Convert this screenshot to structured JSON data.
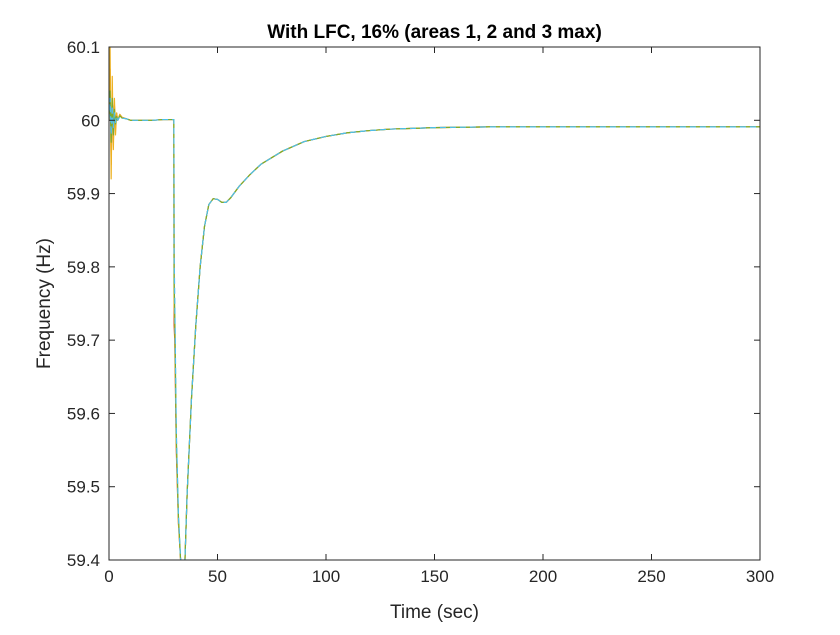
{
  "chart_data": {
    "type": "line",
    "title": "With LFC, 16% (areas 1, 2 and 3 max)",
    "xlabel": "Time (sec)",
    "ylabel": "Frequency (Hz)",
    "xlim": [
      0,
      300
    ],
    "ylim": [
      59.4,
      60.1
    ],
    "x_ticks": [
      0,
      50,
      100,
      150,
      200,
      250,
      300
    ],
    "y_ticks": [
      59.4,
      59.5,
      59.6,
      59.7,
      59.8,
      59.9,
      60,
      60.1
    ],
    "x_tick_labels": [
      "0",
      "50",
      "100",
      "150",
      "200",
      "250",
      "300"
    ],
    "y_tick_labels": [
      "59.4",
      "59.5",
      "59.6",
      "59.7",
      "59.8",
      "59.9",
      "60",
      "60.1"
    ],
    "grid": false,
    "box": true,
    "series": [
      {
        "color": "#d95319",
        "x": [
          0,
          0.5,
          1,
          1.5,
          2,
          2.5,
          3,
          3.5,
          4,
          5,
          6,
          8,
          10,
          15,
          20,
          25,
          29.9,
          30,
          30.3,
          31,
          32,
          33,
          34,
          35,
          36,
          38,
          40,
          42,
          44,
          46,
          48,
          50,
          52,
          54,
          56,
          58,
          60,
          65,
          70,
          80,
          90,
          100,
          110,
          120,
          130,
          140,
          150,
          175,
          200,
          250,
          300
        ],
        "y": [
          60.0,
          60.07,
          59.94,
          60.04,
          59.97,
          60.02,
          59.99,
          60.01,
          60.0,
          60.008,
          60.004,
          60.002,
          60.0,
          60.0,
          60.0,
          60.001,
          60.001,
          59.72,
          59.7,
          59.55,
          59.45,
          59.4,
          59.385,
          59.4,
          59.49,
          59.62,
          59.72,
          59.8,
          59.855,
          59.885,
          59.893,
          59.892,
          59.888,
          59.888,
          59.894,
          59.902,
          59.91,
          59.926,
          59.94,
          59.958,
          59.971,
          59.978,
          59.983,
          59.986,
          59.988,
          59.989,
          59.99,
          59.991,
          59.991,
          59.991,
          59.991
        ]
      },
      {
        "color": "#edb120",
        "x": [
          0,
          0.5,
          1,
          1.5,
          2,
          2.5,
          3,
          3.5,
          4,
          5,
          6,
          8,
          10,
          15,
          20,
          25,
          29.9,
          30,
          30.3,
          31,
          32,
          33,
          34,
          35,
          36,
          38,
          40,
          42,
          44,
          46,
          48,
          50,
          52,
          54,
          56,
          58,
          60,
          65,
          70,
          80,
          90,
          100,
          110,
          120,
          130,
          140,
          150,
          175,
          200,
          250,
          300
        ],
        "y": [
          60.0,
          60.1,
          59.92,
          60.06,
          59.96,
          60.03,
          59.98,
          60.01,
          60.0,
          60.008,
          60.004,
          60.002,
          60.0,
          60.0,
          60.0,
          60.001,
          60.001,
          59.75,
          59.72,
          59.56,
          59.45,
          59.4,
          59.385,
          59.4,
          59.49,
          59.62,
          59.72,
          59.8,
          59.855,
          59.885,
          59.893,
          59.892,
          59.888,
          59.888,
          59.894,
          59.902,
          59.91,
          59.926,
          59.94,
          59.958,
          59.971,
          59.978,
          59.983,
          59.986,
          59.988,
          59.989,
          59.99,
          59.991,
          59.991,
          59.991,
          59.991
        ]
      },
      {
        "color": "#77ac30",
        "x": [
          0,
          0.5,
          1,
          1.5,
          2,
          2.5,
          3,
          3.5,
          4,
          5,
          6,
          8,
          10,
          15,
          20,
          25,
          29.9,
          30,
          30.3,
          31,
          32,
          33,
          34,
          35,
          36,
          38,
          40,
          42,
          44,
          46,
          48,
          50,
          52,
          54,
          56,
          58,
          60,
          65,
          70,
          80,
          90,
          100,
          110,
          120,
          130,
          140,
          150,
          175,
          200,
          250,
          300
        ],
        "y": [
          60.0,
          60.04,
          59.97,
          60.03,
          59.98,
          60.015,
          59.995,
          60.005,
          60.0,
          60.006,
          60.003,
          60.002,
          60.0,
          60.0,
          60.0,
          60.001,
          60.001,
          59.78,
          59.74,
          59.57,
          59.46,
          59.4,
          59.385,
          59.4,
          59.49,
          59.62,
          59.72,
          59.8,
          59.855,
          59.885,
          59.893,
          59.892,
          59.888,
          59.888,
          59.894,
          59.902,
          59.91,
          59.926,
          59.94,
          59.958,
          59.971,
          59.978,
          59.983,
          59.986,
          59.988,
          59.989,
          59.99,
          59.991,
          59.991,
          59.991,
          59.991
        ]
      },
      {
        "color": "#4dbeee",
        "x": [
          0,
          0.5,
          1,
          1.5,
          2,
          2.5,
          3,
          3.5,
          4,
          5,
          6,
          8,
          10,
          15,
          20,
          25,
          29.9,
          30,
          30.3,
          31,
          32,
          33,
          34,
          35,
          36,
          38,
          40,
          42,
          44,
          46,
          48,
          50,
          52,
          54,
          56,
          58,
          60,
          65,
          70,
          80,
          90,
          100,
          110,
          120,
          130,
          140,
          150,
          175,
          200,
          250,
          300
        ],
        "y": [
          60.0,
          60.03,
          59.98,
          60.02,
          59.99,
          60.01,
          59.997,
          60.004,
          60.0,
          60.005,
          60.003,
          60.002,
          60.0,
          60.0,
          60.0,
          60.001,
          60.001,
          59.82,
          59.76,
          59.58,
          59.46,
          59.4,
          59.385,
          59.4,
          59.49,
          59.62,
          59.72,
          59.8,
          59.855,
          59.885,
          59.893,
          59.892,
          59.888,
          59.888,
          59.894,
          59.902,
          59.91,
          59.926,
          59.94,
          59.958,
          59.971,
          59.978,
          59.983,
          59.986,
          59.988,
          59.989,
          59.99,
          59.991,
          59.991,
          59.991,
          59.991
        ]
      }
    ]
  }
}
